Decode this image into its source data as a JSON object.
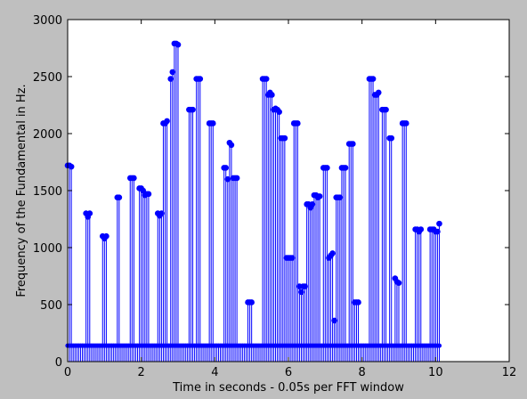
{
  "chart_data": {
    "type": "scatter",
    "style": "stem",
    "title": "",
    "xlabel": "Time in seconds - 0.05s per FFT window",
    "ylabel": "Frequency of the Fundamental in Hz.",
    "xlim": [
      0,
      12
    ],
    "ylim": [
      0,
      3000
    ],
    "xticks": [
      0,
      2,
      4,
      6,
      8,
      10,
      12
    ],
    "yticks": [
      0,
      500,
      1000,
      1500,
      2000,
      2500,
      3000
    ],
    "grid": false,
    "colors": {
      "marker": "#0000ff",
      "axes_bg": "#ffffff",
      "figure_bg": "#bfbfbf"
    },
    "baseline": 140,
    "segments": [
      {
        "x_start": 0.0,
        "x_end": 0.1,
        "values": [
          1720,
          1720,
          1710
        ]
      },
      {
        "x_start": 0.5,
        "x_end": 0.6,
        "values": [
          1300,
          1270,
          1300
        ]
      },
      {
        "x_start": 0.95,
        "x_end": 1.05,
        "values": [
          1100,
          1080,
          1100
        ]
      },
      {
        "x_start": 1.35,
        "x_end": 1.4,
        "values": [
          1440,
          1440
        ]
      },
      {
        "x_start": 1.7,
        "x_end": 1.8,
        "values": [
          1610,
          1610,
          1610
        ]
      },
      {
        "x_start": 1.95,
        "x_end": 2.1,
        "values": [
          1520,
          1520,
          1500,
          1460
        ]
      },
      {
        "x_start": 2.15,
        "x_end": 2.2,
        "values": [
          1470,
          1470
        ]
      },
      {
        "x_start": 2.45,
        "x_end": 2.55,
        "values": [
          1300,
          1280,
          1300
        ]
      },
      {
        "x_start": 2.6,
        "x_end": 2.7,
        "values": [
          2090,
          2090,
          2110
        ]
      },
      {
        "x_start": 2.8,
        "x_end": 2.85,
        "values": [
          2480,
          2540
        ]
      },
      {
        "x_start": 2.9,
        "x_end": 3.0,
        "values": [
          2790,
          2790,
          2780
        ]
      },
      {
        "x_start": 3.3,
        "x_end": 3.4,
        "values": [
          2210,
          2210,
          2210
        ]
      },
      {
        "x_start": 3.5,
        "x_end": 3.6,
        "values": [
          2480,
          2480,
          2480
        ]
      },
      {
        "x_start": 3.85,
        "x_end": 3.95,
        "values": [
          2090,
          2090,
          2090
        ]
      },
      {
        "x_start": 4.25,
        "x_end": 4.3,
        "values": [
          1700,
          1700
        ]
      },
      {
        "x_start": 4.35,
        "x_end": 4.45,
        "values": [
          1600,
          1920,
          1900
        ]
      },
      {
        "x_start": 4.5,
        "x_end": 4.65,
        "values": [
          1610,
          1610,
          1610
        ]
      },
      {
        "x_start": 4.9,
        "x_end": 5.0,
        "values": [
          520,
          520,
          520
        ]
      },
      {
        "x_start": 5.3,
        "x_end": 5.4,
        "values": [
          2480,
          2480,
          2480
        ]
      },
      {
        "x_start": 5.45,
        "x_end": 5.55,
        "values": [
          2340,
          2360,
          2340
        ]
      },
      {
        "x_start": 5.6,
        "x_end": 5.75,
        "values": [
          2210,
          2220,
          2210,
          2190
        ]
      },
      {
        "x_start": 5.8,
        "x_end": 5.9,
        "values": [
          1960,
          1960,
          1960
        ]
      },
      {
        "x_start": 5.95,
        "x_end": 6.1,
        "values": [
          910,
          910,
          910,
          910
        ]
      },
      {
        "x_start": 6.15,
        "x_end": 6.25,
        "values": [
          2090,
          2090,
          2090
        ]
      },
      {
        "x_start": 6.3,
        "x_end": 6.45,
        "values": [
          660,
          610,
          660,
          660
        ]
      },
      {
        "x_start": 6.5,
        "x_end": 6.65,
        "values": [
          1380,
          1380,
          1350,
          1380
        ]
      },
      {
        "x_start": 6.7,
        "x_end": 6.85,
        "values": [
          1460,
          1460,
          1440,
          1450
        ]
      },
      {
        "x_start": 6.95,
        "x_end": 7.05,
        "values": [
          1700,
          1700,
          1700
        ]
      },
      {
        "x_start": 7.1,
        "x_end": 7.25,
        "values": [
          910,
          930,
          950,
          360
        ]
      },
      {
        "x_start": 7.3,
        "x_end": 7.4,
        "values": [
          1440,
          1440,
          1440
        ]
      },
      {
        "x_start": 7.45,
        "x_end": 7.55,
        "values": [
          1700,
          1700,
          1700
        ]
      },
      {
        "x_start": 7.65,
        "x_end": 7.75,
        "values": [
          1910,
          1910,
          1910
        ]
      },
      {
        "x_start": 7.8,
        "x_end": 7.9,
        "values": [
          520,
          520,
          520
        ]
      },
      {
        "x_start": 8.2,
        "x_end": 8.3,
        "values": [
          2480,
          2480,
          2480
        ]
      },
      {
        "x_start": 8.35,
        "x_end": 8.45,
        "values": [
          2340,
          2340,
          2360
        ]
      },
      {
        "x_start": 8.55,
        "x_end": 8.65,
        "values": [
          2210,
          2210,
          2210
        ]
      },
      {
        "x_start": 8.75,
        "x_end": 8.8,
        "values": [
          1960,
          1960
        ]
      },
      {
        "x_start": 8.9,
        "x_end": 9.0,
        "values": [
          730,
          700,
          690
        ]
      },
      {
        "x_start": 9.1,
        "x_end": 9.2,
        "values": [
          2090,
          2090,
          2090
        ]
      },
      {
        "x_start": 9.45,
        "x_end": 9.6,
        "values": [
          1160,
          1160,
          1140,
          1160
        ]
      },
      {
        "x_start": 9.85,
        "x_end": 10.0,
        "values": [
          1160,
          1160,
          1160,
          1140
        ]
      },
      {
        "x_start": 10.05,
        "x_end": 10.1,
        "values": [
          1140,
          1210
        ]
      }
    ]
  }
}
